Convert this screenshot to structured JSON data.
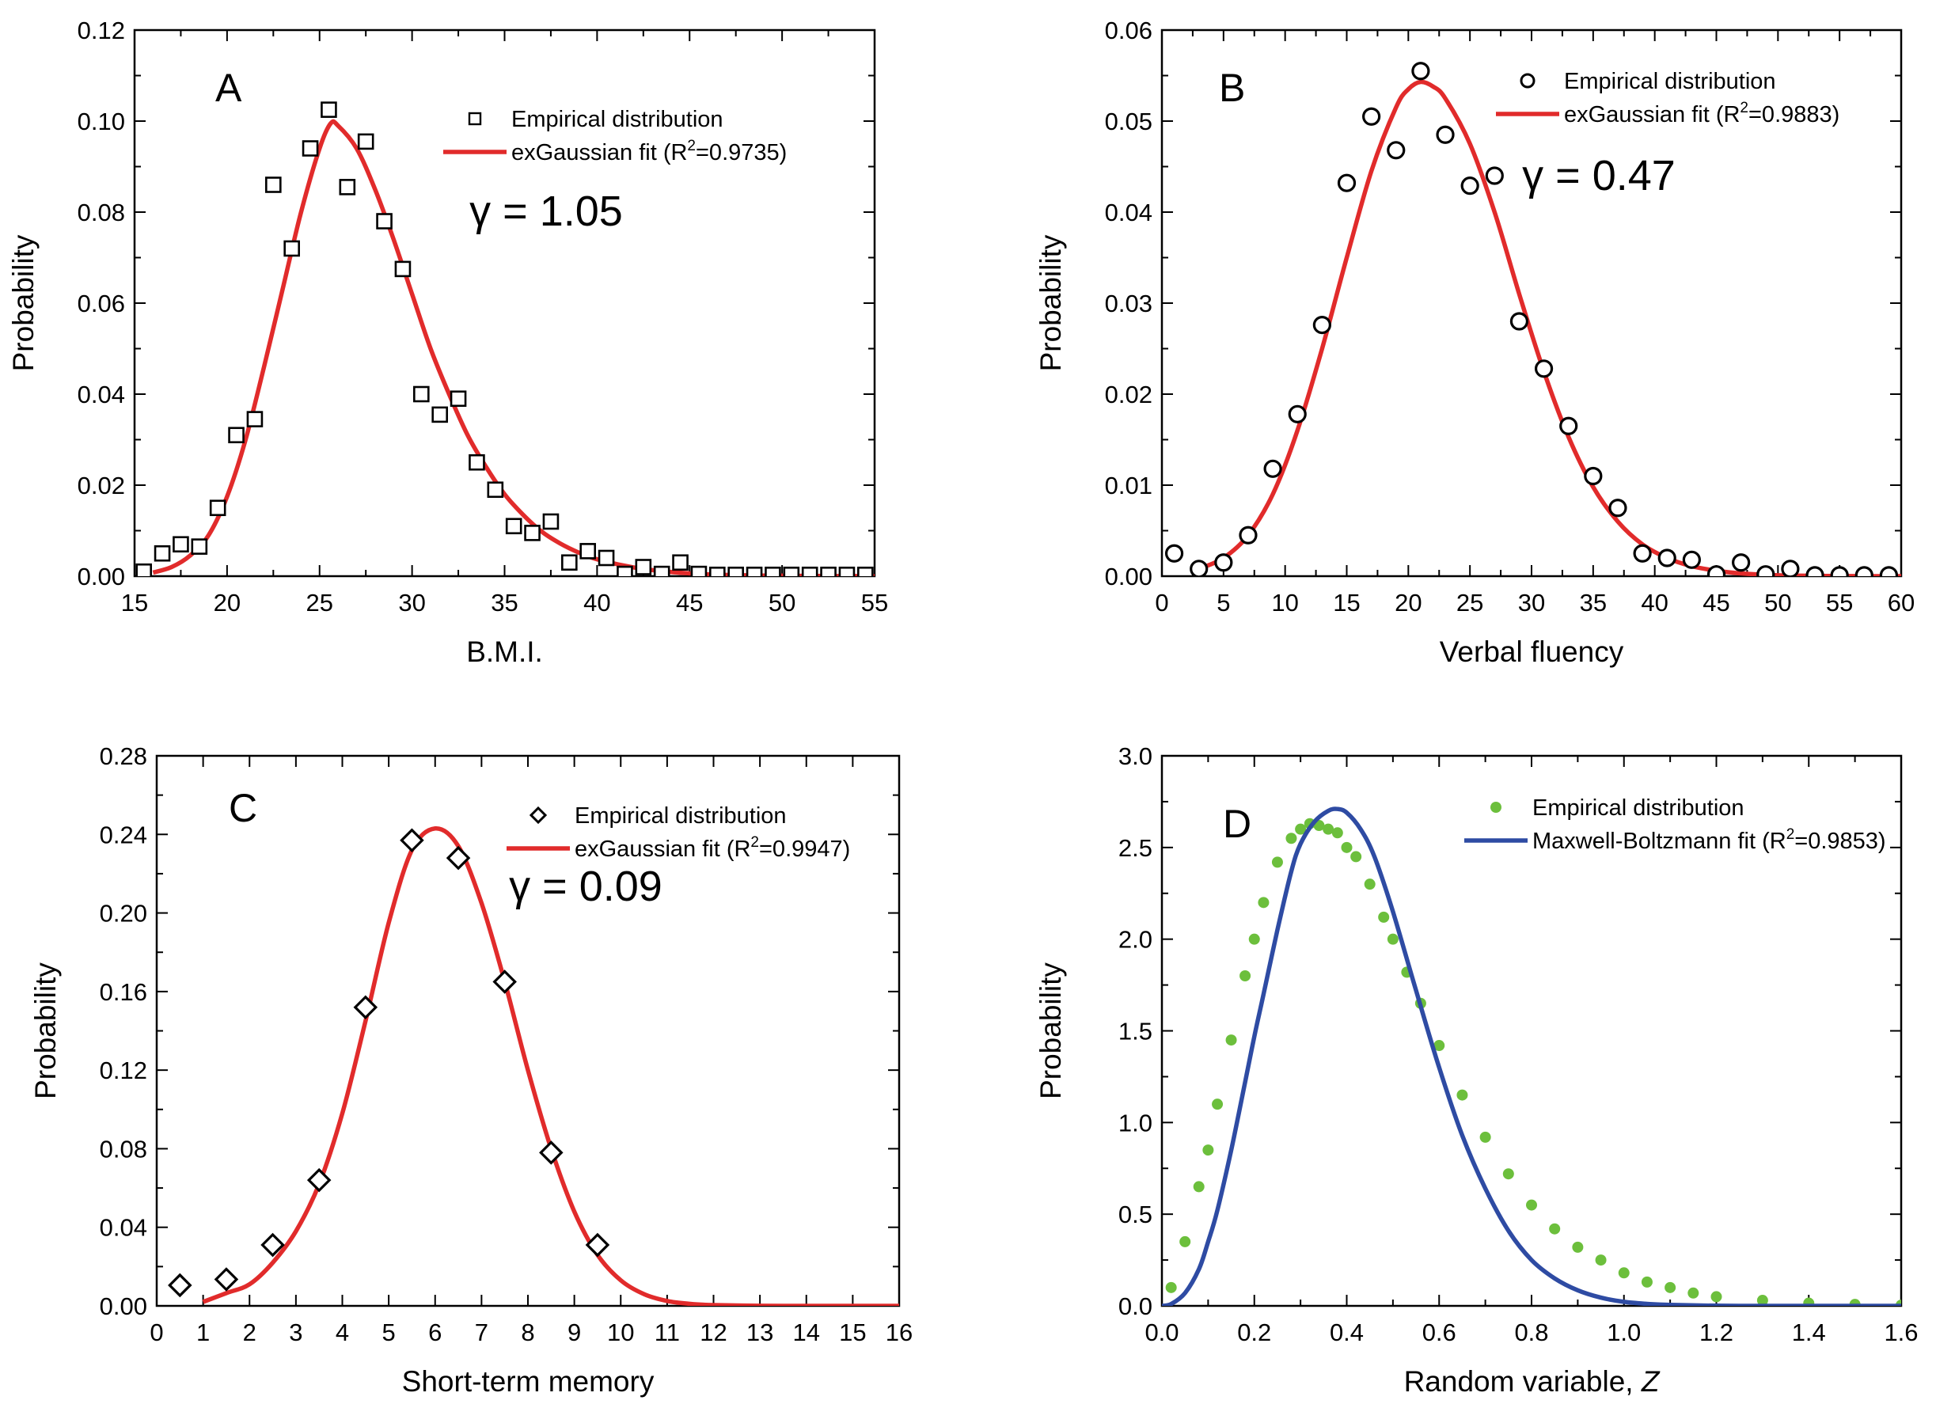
{
  "colors": {
    "fit_red": "#e12b2b",
    "fit_blue": "#2e4ba3",
    "empirical_green": "#6cbf3c",
    "marker_black": "#000000"
  },
  "chart_data": [
    {
      "type": "scatter",
      "panel_label": "A",
      "xlabel": "B.M.I.",
      "ylabel": "Probability",
      "xlim": [
        15,
        55
      ],
      "ylim": [
        0,
        0.12
      ],
      "xticks": [
        15,
        20,
        25,
        30,
        35,
        40,
        45,
        50,
        55
      ],
      "yticks": [
        0,
        0.02,
        0.04,
        0.06,
        0.08,
        0.1,
        0.12
      ],
      "ytick_labels": [
        "0.00",
        "0.02",
        "0.04",
        "0.06",
        "0.08",
        "0.10",
        "0.12"
      ],
      "xminor": 5,
      "annotation": "γ = 1.05",
      "legend": {
        "position": "top-right",
        "empirical": "Empirical distribution",
        "fit_prefix": "exGaussian fit (R",
        "fit_suffix": "=0.9735)"
      },
      "series": [
        {
          "name": "Empirical distribution",
          "marker": "square",
          "x": [
            15.5,
            16.5,
            17.5,
            18.5,
            19.5,
            20.5,
            21.5,
            22.5,
            23.5,
            24.5,
            25.5,
            26.5,
            27.5,
            28.5,
            29.5,
            30.5,
            31.5,
            32.5,
            33.5,
            34.5,
            35.5,
            36.5,
            37.5,
            38.5,
            39.5,
            40.5,
            41.5,
            42.5,
            43.5,
            44.5,
            45.5,
            46.5,
            47.5,
            48.5,
            49.5,
            50.5,
            51.5,
            52.5,
            53.5,
            54.5
          ],
          "y": [
            0.001,
            0.005,
            0.007,
            0.0065,
            0.015,
            0.031,
            0.0345,
            0.086,
            0.072,
            0.094,
            0.1025,
            0.0855,
            0.0955,
            0.078,
            0.0675,
            0.04,
            0.0355,
            0.039,
            0.025,
            0.019,
            0.011,
            0.0095,
            0.012,
            0.003,
            0.0055,
            0.004,
            0.0005,
            0.002,
            0.0005,
            0.003,
            0.0005,
            0.0003,
            0.0003,
            0.0003,
            0.0003,
            0.0003,
            0.0003,
            0.0003,
            0.0003,
            0.0003
          ]
        },
        {
          "name": "exGaussian fit",
          "type": "line",
          "x": [
            16,
            17,
            18,
            19,
            20,
            21,
            22,
            23,
            24,
            25,
            25.6,
            26,
            27,
            28,
            29,
            30,
            31,
            32,
            33,
            34,
            35,
            36,
            37,
            38,
            39,
            40,
            42,
            44,
            46,
            48,
            50,
            52,
            55
          ],
          "y": [
            0.0008,
            0.002,
            0.0045,
            0.009,
            0.0175,
            0.03,
            0.046,
            0.063,
            0.08,
            0.094,
            0.0995,
            0.099,
            0.094,
            0.085,
            0.074,
            0.062,
            0.05,
            0.04,
            0.031,
            0.024,
            0.018,
            0.0135,
            0.0098,
            0.0072,
            0.0052,
            0.0037,
            0.0019,
            0.0009,
            0.0004,
            0.0002,
            0.0001,
            5e-05,
            2e-05
          ]
        }
      ]
    },
    {
      "type": "scatter",
      "panel_label": "B",
      "xlabel": "Verbal fluency",
      "ylabel": "Probability",
      "xlim": [
        0,
        60
      ],
      "ylim": [
        0,
        0.06
      ],
      "xticks": [
        0,
        5,
        10,
        15,
        20,
        25,
        30,
        35,
        40,
        45,
        50,
        55,
        60
      ],
      "yticks": [
        0,
        0.01,
        0.02,
        0.03,
        0.04,
        0.05,
        0.06
      ],
      "ytick_labels": [
        "0.00",
        "0.01",
        "0.02",
        "0.03",
        "0.04",
        "0.05",
        "0.06"
      ],
      "xminor": 5,
      "annotation": "γ = 0.47",
      "legend": {
        "position": "top-right",
        "empirical": "Empirical distribution",
        "fit_prefix": "exGaussian fit (R",
        "fit_suffix": "=0.9883)"
      },
      "series": [
        {
          "name": "Empirical distribution",
          "marker": "circle",
          "x": [
            1,
            3,
            5,
            7,
            9,
            11,
            13,
            15,
            17,
            19,
            21,
            23,
            25,
            27,
            29,
            31,
            33,
            35,
            37,
            39,
            41,
            43,
            45,
            47,
            49,
            51,
            53,
            55,
            57,
            59
          ],
          "y": [
            0.0025,
            0.0008,
            0.0015,
            0.0045,
            0.0118,
            0.0178,
            0.0276,
            0.0432,
            0.0505,
            0.0468,
            0.0555,
            0.0485,
            0.0429,
            0.044,
            0.028,
            0.0228,
            0.0165,
            0.011,
            0.0075,
            0.0025,
            0.002,
            0.0018,
            0.0002,
            0.0015,
            0.0002,
            0.0008,
            0.0001,
            0.0001,
            0.0001,
            0.0001
          ]
        },
        {
          "name": "exGaussian fit",
          "type": "line",
          "x": [
            3,
            5,
            7,
            9,
            11,
            13,
            15,
            17,
            19,
            20,
            21,
            22,
            23,
            25,
            27,
            29,
            31,
            33,
            35,
            37,
            39,
            41,
            43,
            45,
            47,
            50,
            55,
            60
          ],
          "y": [
            0.0008,
            0.002,
            0.0045,
            0.009,
            0.016,
            0.025,
            0.035,
            0.0445,
            0.0515,
            0.0535,
            0.0543,
            0.0538,
            0.0525,
            0.0475,
            0.04,
            0.031,
            0.0225,
            0.0153,
            0.0098,
            0.006,
            0.0035,
            0.002,
            0.0011,
            0.0006,
            0.0003,
            0.0001,
            2e-05,
            0.0
          ]
        }
      ]
    },
    {
      "type": "scatter",
      "panel_label": "C",
      "xlabel": "Short-term memory",
      "ylabel": "Probability",
      "xlim": [
        0,
        16
      ],
      "ylim": [
        0,
        0.28
      ],
      "xticks": [
        0,
        1,
        2,
        3,
        4,
        5,
        6,
        7,
        8,
        9,
        10,
        11,
        12,
        13,
        14,
        15,
        16
      ],
      "yticks": [
        0,
        0.04,
        0.08,
        0.12,
        0.16,
        0.2,
        0.24,
        0.28
      ],
      "ytick_labels": [
        "0.00",
        "0.04",
        "0.08",
        "0.12",
        "0.16",
        "0.20",
        "0.24",
        "0.28"
      ],
      "xminor": 1,
      "annotation": "γ = 0.09",
      "legend": {
        "position": "top-right",
        "empirical": "Empirical distribution",
        "fit_prefix": "exGaussian fit (R",
        "fit_suffix": "=0.9947)"
      },
      "series": [
        {
          "name": "Empirical distribution",
          "marker": "diamond",
          "x": [
            0.5,
            1.5,
            2.5,
            3.5,
            4.5,
            5.5,
            6.5,
            7.5,
            8.5,
            9.5
          ],
          "y": [
            0.0105,
            0.0135,
            0.031,
            0.064,
            0.152,
            0.237,
            0.228,
            0.165,
            0.078,
            0.031
          ]
        },
        {
          "name": "exGaussian fit",
          "type": "line",
          "x": [
            1,
            1.5,
            2,
            2.5,
            3,
            3.5,
            4,
            4.5,
            5,
            5.5,
            6,
            6.5,
            7,
            7.5,
            8,
            8.5,
            9,
            9.5,
            10,
            10.5,
            11,
            11.5,
            12,
            13,
            14,
            15,
            16
          ],
          "y": [
            0.002,
            0.0065,
            0.011,
            0.022,
            0.038,
            0.062,
            0.098,
            0.145,
            0.195,
            0.232,
            0.243,
            0.234,
            0.205,
            0.165,
            0.12,
            0.08,
            0.048,
            0.026,
            0.013,
            0.006,
            0.0025,
            0.001,
            0.0004,
            5e-05,
            0.0,
            0.0,
            0.0
          ]
        }
      ]
    },
    {
      "type": "scatter",
      "panel_label": "D",
      "xlabel": "Random variable, ",
      "xlabel_italic": "Z",
      "ylabel": "Probability",
      "xlim": [
        0,
        1.6
      ],
      "ylim": [
        0,
        3.0
      ],
      "xticks": [
        0,
        0.2,
        0.4,
        0.6,
        0.8,
        1.0,
        1.2,
        1.4,
        1.6
      ],
      "xtick_labels": [
        "0.0",
        "0.2",
        "0.4",
        "0.6",
        "0.8",
        "1.0",
        "1.2",
        "1.4",
        "1.6"
      ],
      "yticks": [
        0,
        0.5,
        1.0,
        1.5,
        2.0,
        2.5,
        3.0
      ],
      "ytick_labels": [
        "0.0",
        "0.5",
        "1.0",
        "1.5",
        "2.0",
        "2.5",
        "3.0"
      ],
      "xminor": 5,
      "legend": {
        "position": "top-right",
        "empirical": "Empirical distribution",
        "fit_prefix": "Maxwell-Boltzmann fit (R",
        "fit_suffix": "=0.9853)"
      },
      "series": [
        {
          "name": "Empirical distribution",
          "marker": "dot",
          "x": [
            0.02,
            0.05,
            0.08,
            0.1,
            0.12,
            0.15,
            0.18,
            0.2,
            0.22,
            0.25,
            0.28,
            0.3,
            0.32,
            0.34,
            0.36,
            0.38,
            0.4,
            0.42,
            0.45,
            0.48,
            0.5,
            0.53,
            0.56,
            0.6,
            0.65,
            0.7,
            0.75,
            0.8,
            0.85,
            0.9,
            0.95,
            1.0,
            1.05,
            1.1,
            1.15,
            1.2,
            1.3,
            1.4,
            1.5,
            1.6
          ],
          "y": [
            0.1,
            0.35,
            0.65,
            0.85,
            1.1,
            1.45,
            1.8,
            2.0,
            2.2,
            2.42,
            2.55,
            2.6,
            2.63,
            2.62,
            2.6,
            2.58,
            2.5,
            2.45,
            2.3,
            2.12,
            2.0,
            1.82,
            1.65,
            1.42,
            1.15,
            0.92,
            0.72,
            0.55,
            0.42,
            0.32,
            0.25,
            0.18,
            0.13,
            0.1,
            0.07,
            0.05,
            0.03,
            0.015,
            0.008,
            0.004
          ]
        },
        {
          "name": "Maxwell-Boltzmann fit",
          "type": "line",
          "x": [
            0,
            0.02,
            0.05,
            0.08,
            0.1,
            0.12,
            0.15,
            0.18,
            0.2,
            0.22,
            0.25,
            0.28,
            0.3,
            0.33,
            0.36,
            0.38,
            0.4,
            0.43,
            0.46,
            0.5,
            0.55,
            0.6,
            0.65,
            0.7,
            0.75,
            0.8,
            0.85,
            0.9,
            0.95,
            1.0,
            1.05,
            1.1,
            1.2,
            1.3,
            1.4,
            1.5,
            1.6
          ],
          "y": [
            0,
            0.01,
            0.07,
            0.2,
            0.35,
            0.52,
            0.85,
            1.22,
            1.47,
            1.7,
            2.05,
            2.37,
            2.52,
            2.64,
            2.7,
            2.71,
            2.69,
            2.6,
            2.45,
            2.15,
            1.72,
            1.3,
            0.93,
            0.64,
            0.41,
            0.25,
            0.15,
            0.085,
            0.045,
            0.022,
            0.011,
            0.005,
            0.001,
            0.0002,
            0,
            0,
            0
          ]
        }
      ]
    }
  ]
}
